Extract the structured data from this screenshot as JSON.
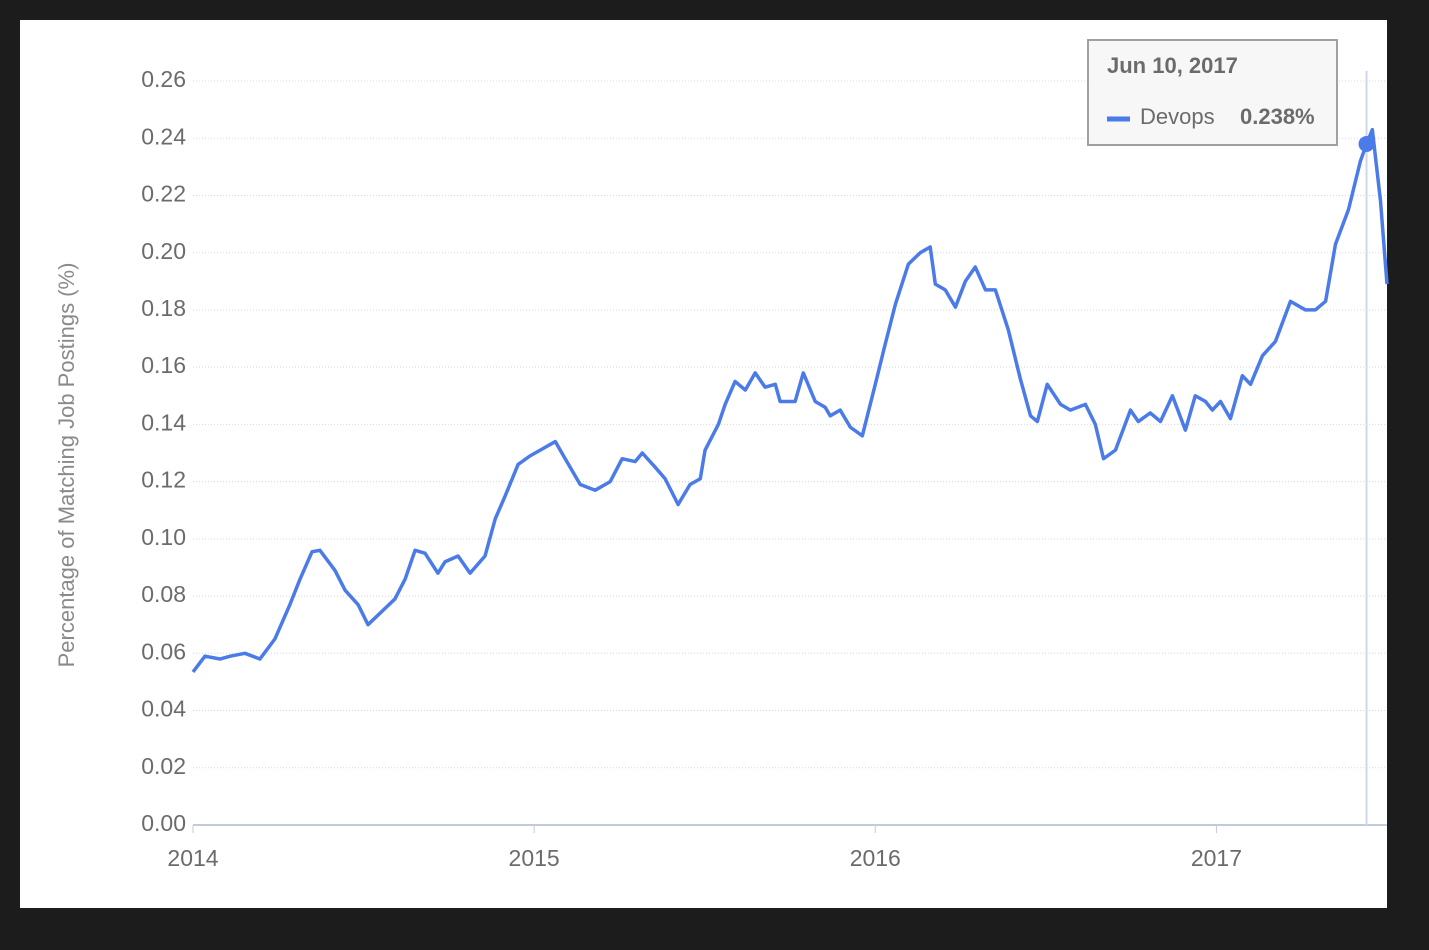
{
  "chart_data": {
    "type": "line",
    "y_label": "Percentage of Matching Job Postings (%)",
    "x": [
      2014.0,
      2014.035,
      2014.079,
      2014.109,
      2014.152,
      2014.196,
      2014.24,
      2014.284,
      2014.314,
      2014.349,
      2014.372,
      2014.416,
      2014.446,
      2014.484,
      2014.513,
      2014.548,
      2014.592,
      2014.622,
      2014.651,
      2014.68,
      2014.718,
      2014.739,
      2014.777,
      2014.812,
      2014.856,
      2014.886,
      2014.915,
      2014.953,
      2014.988,
      2015.018,
      2015.062,
      2015.091,
      2015.135,
      2015.179,
      2015.223,
      2015.258,
      2015.296,
      2015.317,
      2015.355,
      2015.384,
      2015.422,
      2015.457,
      2015.487,
      2015.501,
      2015.54,
      2015.56,
      2015.589,
      2015.619,
      2015.648,
      2015.677,
      2015.707,
      2015.721,
      2015.765,
      2015.789,
      2015.824,
      2015.853,
      2015.868,
      2015.897,
      2015.927,
      2015.962,
      2016.0,
      2016.029,
      2016.059,
      2016.097,
      2016.132,
      2016.161,
      2016.176,
      2016.205,
      2016.235,
      2016.264,
      2016.293,
      2016.323,
      2016.352,
      2016.39,
      2016.425,
      2016.455,
      2016.475,
      2016.504,
      2016.543,
      2016.572,
      2016.616,
      2016.645,
      2016.669,
      2016.704,
      2016.748,
      2016.771,
      2016.806,
      2016.836,
      2016.871,
      2016.909,
      2016.938,
      2016.968,
      2016.988,
      2017.012,
      2017.041,
      2017.076,
      2017.1,
      2017.135,
      2017.173,
      2017.217,
      2017.261,
      2017.29,
      2017.32,
      2017.349,
      2017.387,
      2017.422,
      2017.44,
      2017.457,
      2017.481,
      2017.5
    ],
    "series": [
      {
        "name": "Devops",
        "color": "#4a7be8",
        "values": [
          0.0535,
          0.059,
          0.058,
          0.059,
          0.06,
          0.058,
          0.065,
          0.077,
          0.086,
          0.0955,
          0.096,
          0.089,
          0.082,
          0.077,
          0.07,
          0.074,
          0.079,
          0.086,
          0.096,
          0.095,
          0.088,
          0.092,
          0.094,
          0.088,
          0.094,
          0.107,
          0.115,
          0.126,
          0.129,
          0.131,
          0.134,
          0.128,
          0.119,
          0.117,
          0.12,
          0.128,
          0.127,
          0.13,
          0.125,
          0.121,
          0.112,
          0.119,
          0.121,
          0.131,
          0.14,
          0.147,
          0.155,
          0.152,
          0.158,
          0.153,
          0.154,
          0.148,
          0.148,
          0.158,
          0.148,
          0.146,
          0.143,
          0.145,
          0.139,
          0.136,
          0.154,
          0.168,
          0.182,
          0.196,
          0.2,
          0.202,
          0.189,
          0.187,
          0.181,
          0.19,
          0.195,
          0.187,
          0.187,
          0.173,
          0.156,
          0.143,
          0.141,
          0.154,
          0.147,
          0.145,
          0.147,
          0.14,
          0.128,
          0.131,
          0.145,
          0.141,
          0.144,
          0.141,
          0.15,
          0.138,
          0.15,
          0.148,
          0.145,
          0.148,
          0.142,
          0.157,
          0.154,
          0.164,
          0.169,
          0.183,
          0.18,
          0.18,
          0.183,
          0.203,
          0.215,
          0.232,
          0.238,
          0.243,
          0.218,
          0.189
        ]
      }
    ],
    "xlim": [
      2014,
      2017.5
    ],
    "xticks": [
      2014,
      2015,
      2016,
      2017
    ],
    "ylim": [
      0,
      0.26
    ],
    "yticks": [
      {
        "value": 0,
        "label": "0.00"
      },
      0.02,
      0.04,
      0.06,
      0.08,
      {
        "value": 0.1,
        "label": "0.10"
      },
      0.12,
      0.14,
      0.16,
      0.18,
      {
        "value": 0.2,
        "label": "0.20"
      },
      0.22,
      0.24,
      0.26
    ],
    "grid": true,
    "tooltip": {
      "title": "Jun 10, 2017",
      "x": 2017.44,
      "value": 0.238,
      "value_label": "0.238%"
    }
  }
}
